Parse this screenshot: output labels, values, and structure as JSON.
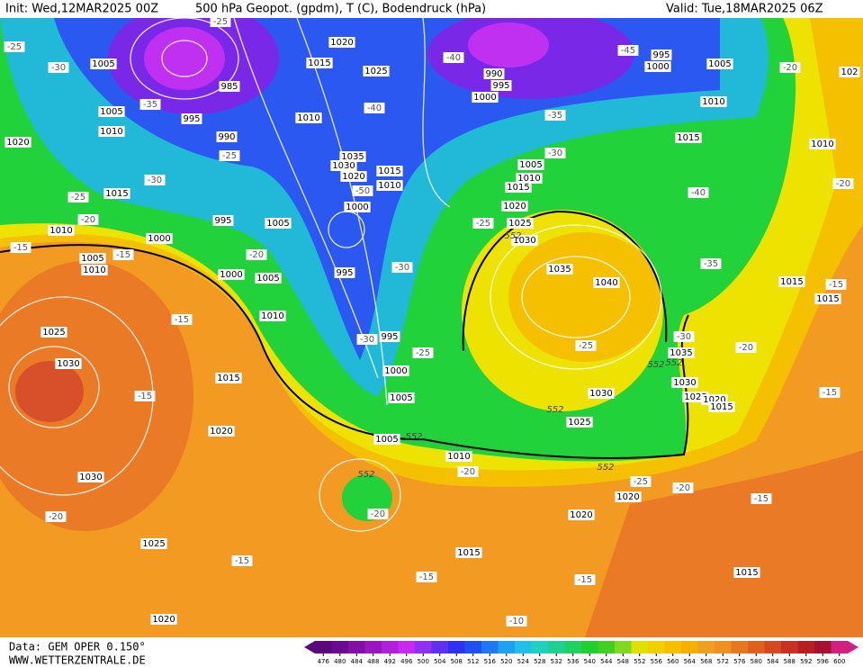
{
  "header": {
    "init": "Init: Wed,12MAR2025 00Z",
    "title": "500 hPa Geopot. (gpdm), T (C), Bodendruck (hPa)",
    "valid": "Valid: Tue,18MAR2025 06Z"
  },
  "footer": {
    "data": "Data: GEM OPER 0.150°",
    "site": "WWW.WETTERZENTRALE.DE"
  },
  "isobar_labels": [
    "1020",
    "1005",
    "1015",
    "1025",
    "985",
    "995",
    "1005",
    "1010",
    "990",
    "1020",
    "1010",
    "1035",
    "1030",
    "1020",
    "1015",
    "1010",
    "1015",
    "995",
    "1000",
    "1005",
    "1010",
    "1000",
    "1005",
    "1010",
    "1000",
    "1005",
    "995",
    "1010",
    "1025",
    "1030",
    "995",
    "1000",
    "1005",
    "1015",
    "1020",
    "1030",
    "1025",
    "1020",
    "1005",
    "1010",
    "990",
    "995",
    "1000",
    "995",
    "1000",
    "1005",
    "1010",
    "1015",
    "1010",
    "1005",
    "1010",
    "1015",
    "1020",
    "1025",
    "1030",
    "1035",
    "1040",
    "1035",
    "1030",
    "1025",
    "1020",
    "1015",
    "1030",
    "1025",
    "1020",
    "1020",
    "1015",
    "1015",
    "1015",
    "1015",
    "102"
  ],
  "temperature_labels": [
    "-25",
    "-25",
    "-30",
    "-35",
    "-25",
    "-30",
    "-25",
    "-20",
    "-15",
    "-15",
    "-20",
    "-40",
    "-50",
    "-30",
    "-30",
    "-25",
    "-40",
    "-45",
    "-35",
    "-30",
    "-25",
    "-40",
    "-35",
    "-30",
    "-25",
    "-20",
    "-15",
    "-15",
    "-20",
    "-15",
    "-25",
    "-20",
    "-20",
    "-15",
    "-15",
    "-15",
    "-20",
    "-15",
    "-15",
    "-10",
    "-20",
    "-20"
  ],
  "height_labels": [
    "552",
    "552",
    "552",
    "552",
    "552",
    "552",
    "552"
  ],
  "colorbar": {
    "ticks": [
      476,
      480,
      484,
      488,
      492,
      496,
      500,
      504,
      508,
      512,
      516,
      520,
      524,
      528,
      532,
      536,
      540,
      544,
      548,
      552,
      556,
      560,
      564,
      568,
      572,
      576,
      580,
      584,
      588,
      592,
      596,
      600
    ],
    "colors": [
      "#5a0a78",
      "#6a0a90",
      "#8010a8",
      "#9818c0",
      "#b020d8",
      "#c828f0",
      "#9030f0",
      "#6030f0",
      "#3030f0",
      "#2050f0",
      "#2078f0",
      "#20a0f0",
      "#20c0e8",
      "#20d0c0",
      "#20d090",
      "#20d060",
      "#20d030",
      "#40d020",
      "#80d820",
      "#e0e000",
      "#f0d000",
      "#f5c000",
      "#f5b000",
      "#f0a020",
      "#f09020",
      "#e87820",
      "#e06020",
      "#d84820",
      "#c83020",
      "#b82020",
      "#a81030",
      "#d02080"
    ]
  }
}
